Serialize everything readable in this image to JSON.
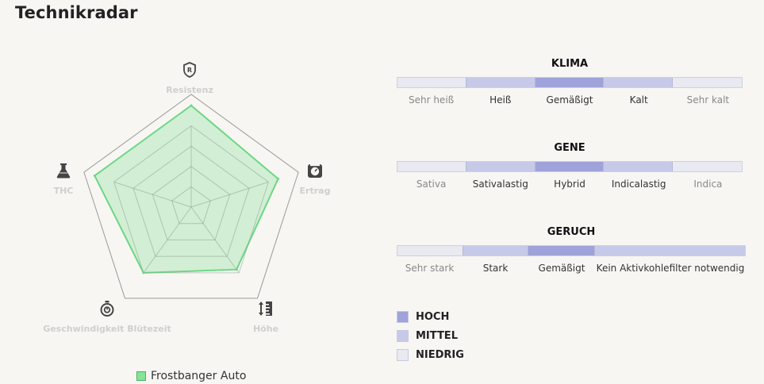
{
  "page": {
    "title": "Technikradar"
  },
  "colors": {
    "high": "#9fa3da",
    "mid": "#c7c9e8",
    "low": "#e9e9f1",
    "fill": "#9ee3aa",
    "stroke": "#6ad884"
  },
  "chart_data": {
    "type": "radar",
    "axes": [
      {
        "label": "Resistenz",
        "icon": "shield-r-icon"
      },
      {
        "label": "Ertrag",
        "icon": "scale-icon"
      },
      {
        "label": "Höhe",
        "icon": "height-ruler-icon"
      },
      {
        "label": "Geschwindigkeit Blütezeit",
        "icon": "stopwatch-icon"
      },
      {
        "label": "THC",
        "icon": "flask-icon"
      }
    ],
    "max": 5,
    "rings": 5,
    "series": [
      {
        "name": "Frostbanger Auto",
        "values": [
          5,
          4.5,
          3.8,
          4.0,
          5
        ]
      }
    ]
  },
  "scales": [
    {
      "title": "KLIMA",
      "labels": [
        "Sehr heiß",
        "Heiß",
        "Gemäßigt",
        "Kalt",
        "Sehr kalt"
      ],
      "levels": [
        "low",
        "mid",
        "high",
        "mid",
        "low"
      ]
    },
    {
      "title": "GENE",
      "labels": [
        "Sativa",
        "Sativalastig",
        "Hybrid",
        "Indicalastig",
        "Indica"
      ],
      "levels": [
        "low",
        "mid",
        "high",
        "mid",
        "low"
      ]
    },
    {
      "title": "GERUCH",
      "labels": [
        "Sehr stark",
        "Stark",
        "Gemäßigt",
        "Kein Aktivkohlefilter notwendig"
      ],
      "levels": [
        "low",
        "mid",
        "high",
        "mid"
      ]
    }
  ],
  "legend": [
    {
      "label": "HOCH",
      "level": "high"
    },
    {
      "label": "MITTEL",
      "level": "mid"
    },
    {
      "label": "NIEDRIG",
      "level": "low"
    }
  ]
}
